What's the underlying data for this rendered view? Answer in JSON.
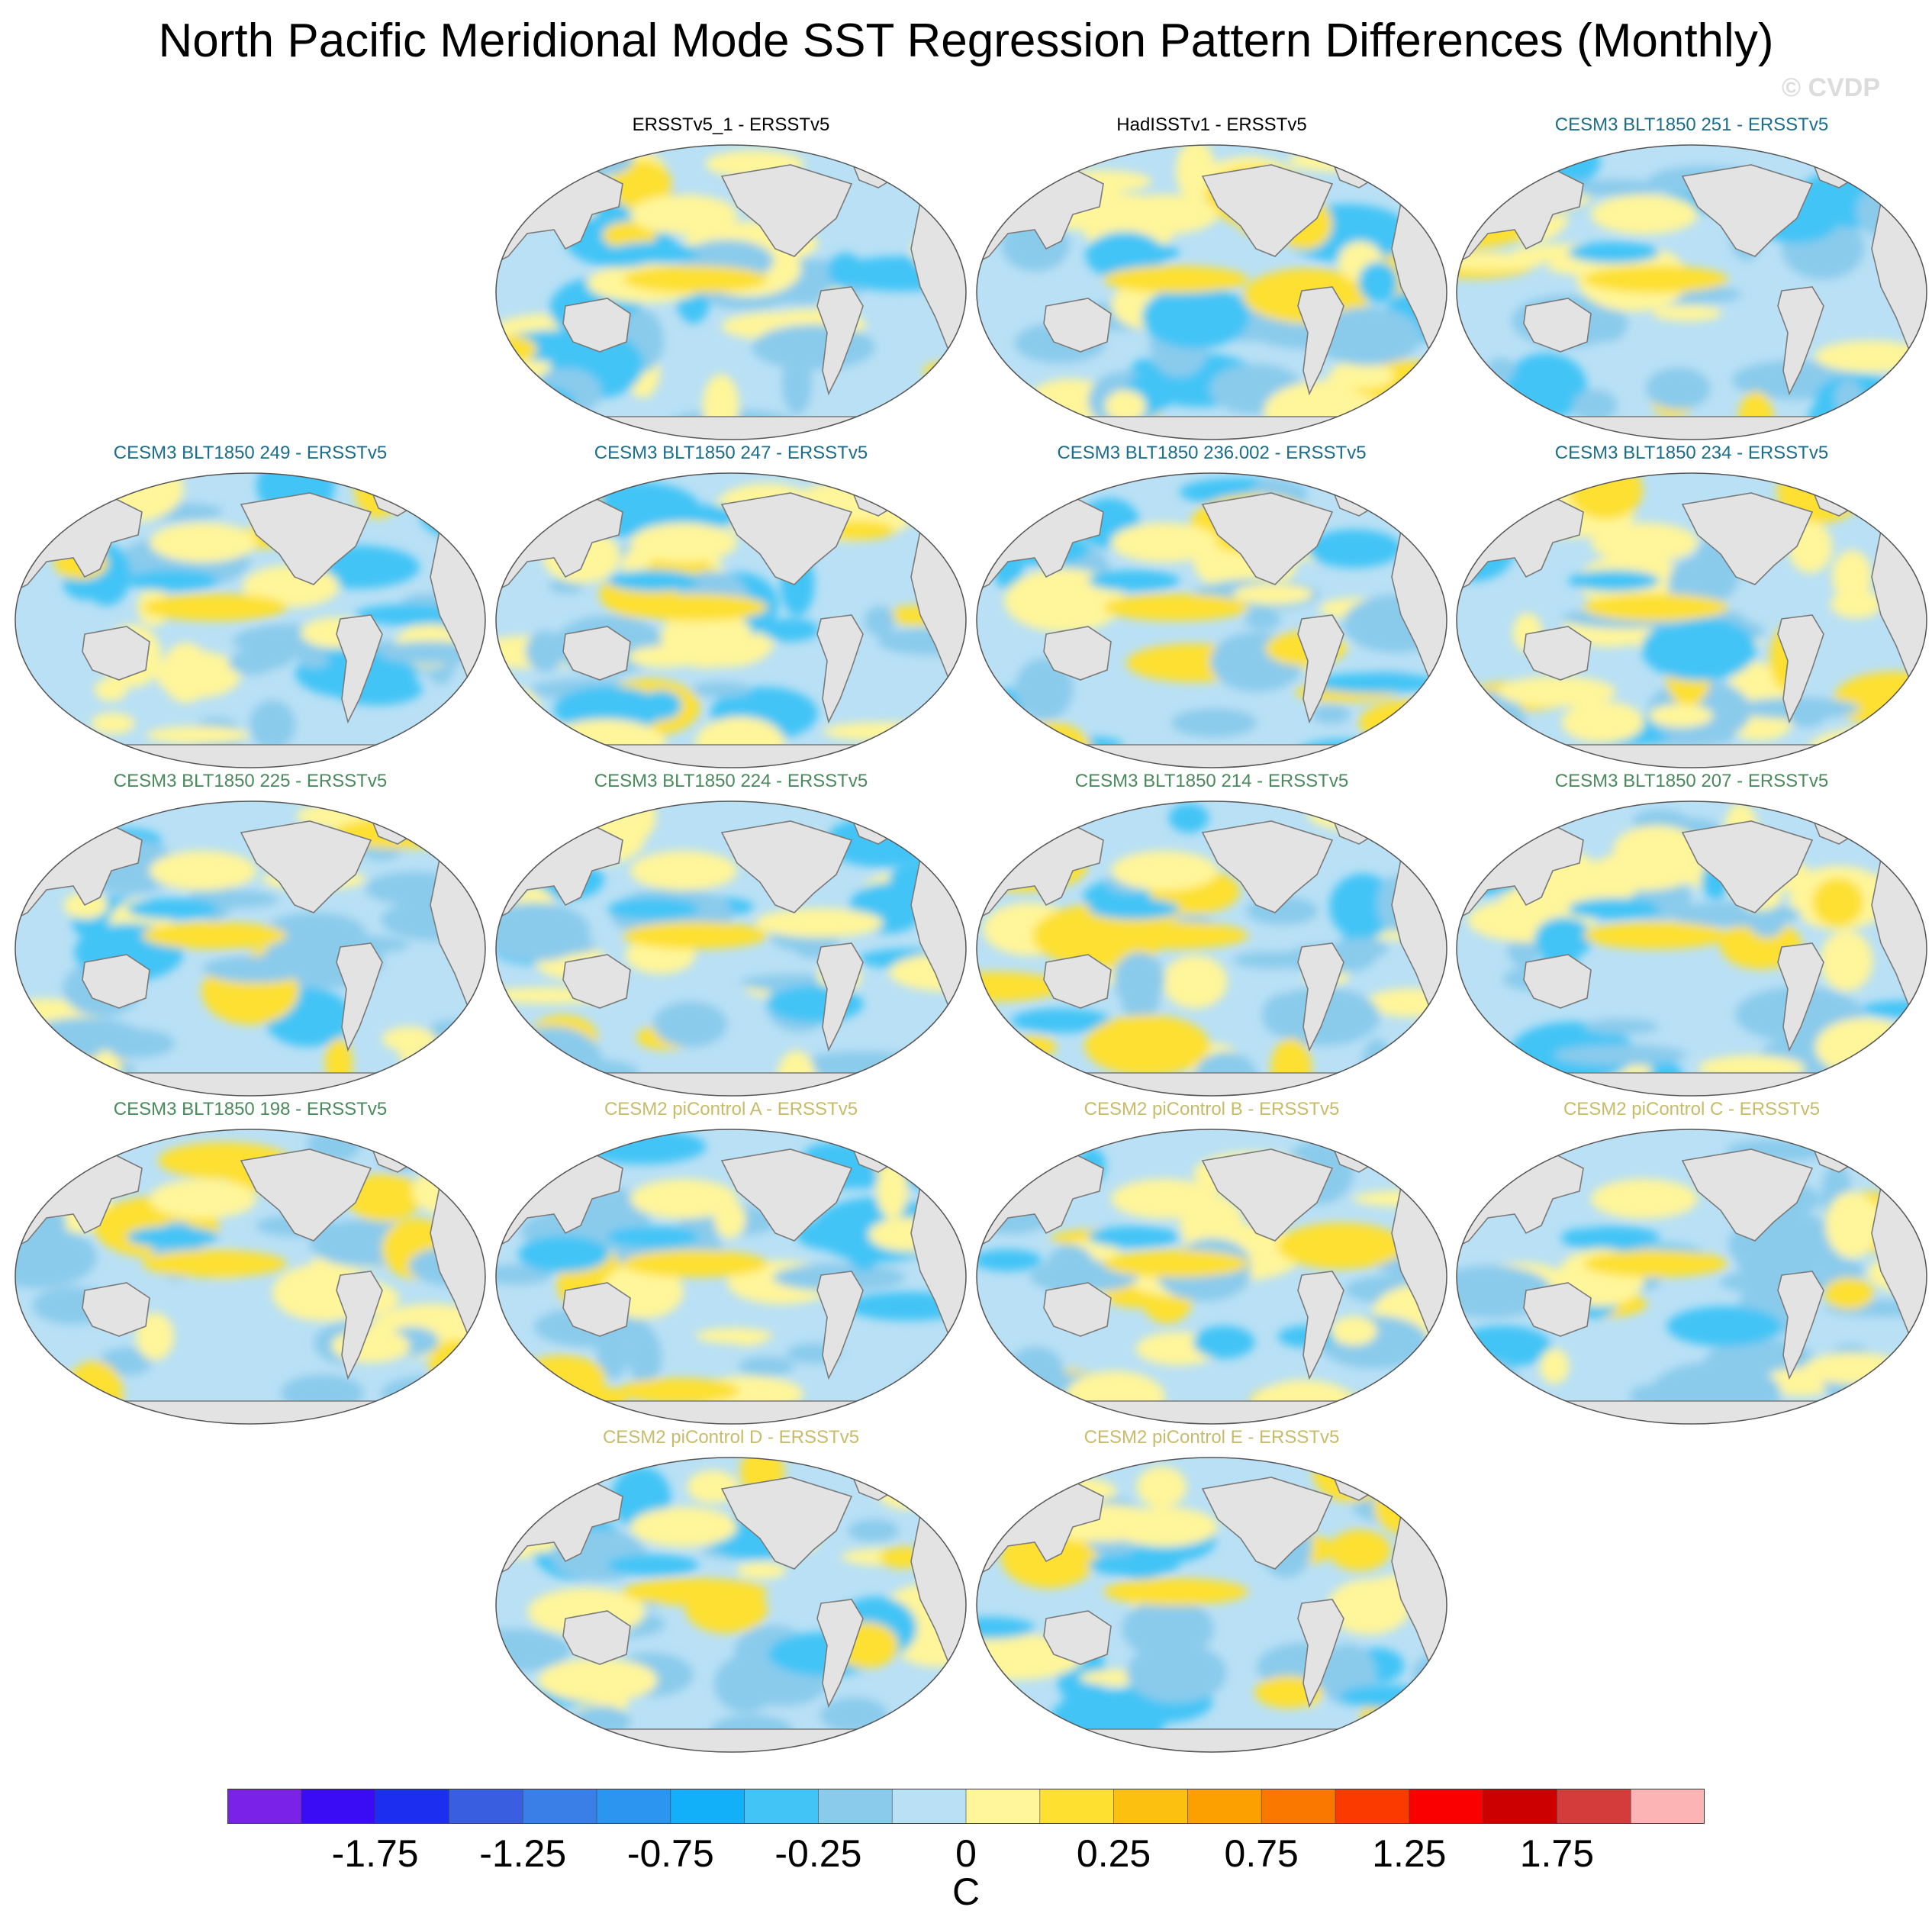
{
  "title": "North Pacific Meridional Mode SST Regression Pattern Differences (Monthly)",
  "watermark": "© CVDP",
  "panels": [
    {
      "label": "ERSSTv5_1 - ERSSTv5",
      "color": "#000000"
    },
    {
      "label": "HadISSTv1 - ERSSTv5",
      "color": "#000000"
    },
    {
      "label": "CESM3 BLT1850 251 - ERSSTv5",
      "color": "#1a6e8c"
    },
    {
      "label": "CESM3 BLT1850 249 - ERSSTv5",
      "color": "#1a6e8c"
    },
    {
      "label": "CESM3 BLT1850 247 - ERSSTv5",
      "color": "#1a6e8c"
    },
    {
      "label": "CESM3 BLT1850 236.002 - ERSSTv5",
      "color": "#1a6e8c"
    },
    {
      "label": "CESM3 BLT1850 234 - ERSSTv5",
      "color": "#1a6e8c"
    },
    {
      "label": "CESM3 BLT1850 225 - ERSSTv5",
      "color": "#4a8a5c"
    },
    {
      "label": "CESM3 BLT1850 224 - ERSSTv5",
      "color": "#4a8a5c"
    },
    {
      "label": "CESM3 BLT1850 214 - ERSSTv5",
      "color": "#4a8a5c"
    },
    {
      "label": "CESM3 BLT1850 207 - ERSSTv5",
      "color": "#4a8a5c"
    },
    {
      "label": "CESM3 BLT1850 198 - ERSSTv5",
      "color": "#4a8a5c"
    },
    {
      "label": "CESM2 piControl A - ERSSTv5",
      "color": "#c8bc6a"
    },
    {
      "label": "CESM2 piControl B - ERSSTv5",
      "color": "#c8bc6a"
    },
    {
      "label": "CESM2 piControl C - ERSSTv5",
      "color": "#c8bc6a"
    },
    {
      "label": "CESM2 piControl D - ERSSTv5",
      "color": "#c8bc6a"
    },
    {
      "label": "CESM2 piControl E - ERSSTv5",
      "color": "#c8bc6a"
    }
  ],
  "colors": {
    "ocean_base": "#b9e0f5",
    "land": "#e3e3e3",
    "coast": "#7a7a7a"
  },
  "colorbar": {
    "units": "C",
    "colors": [
      "#7b22e8",
      "#3a0cf5",
      "#1c2ef0",
      "#3a5ee0",
      "#3a7ee8",
      "#2b95f0",
      "#11b0f8",
      "#42c4f6",
      "#8acbec",
      "#b9e0f5",
      "#fff59a",
      "#fde030",
      "#fcc010",
      "#fba000",
      "#fb7800",
      "#fb3a00",
      "#fb0000",
      "#cd0000",
      "#d43c3c",
      "#fcb4b4"
    ],
    "tick_labels": [
      "-1.75",
      "-1.25",
      "-0.75",
      "-0.25",
      "0",
      "0.25",
      "0.75",
      "1.25",
      "1.75"
    ]
  },
  "chart_data": {
    "type": "heatmap",
    "title": "North Pacific Meridional Mode SST Regression Pattern Differences (Monthly)",
    "colorbar_levels": [
      -2.0,
      -1.75,
      -1.5,
      -1.25,
      -1.0,
      -0.75,
      -0.5,
      -0.25,
      -0.1,
      0,
      0.1,
      0.25,
      0.5,
      0.75,
      1.0,
      1.25,
      1.5,
      1.75,
      2.0
    ],
    "colorbar_tick_labels": [
      "-1.75",
      "-1.25",
      "-0.75",
      "-0.25",
      "0",
      "0.25",
      "0.75",
      "1.25",
      "1.75"
    ],
    "units": "C"
  }
}
